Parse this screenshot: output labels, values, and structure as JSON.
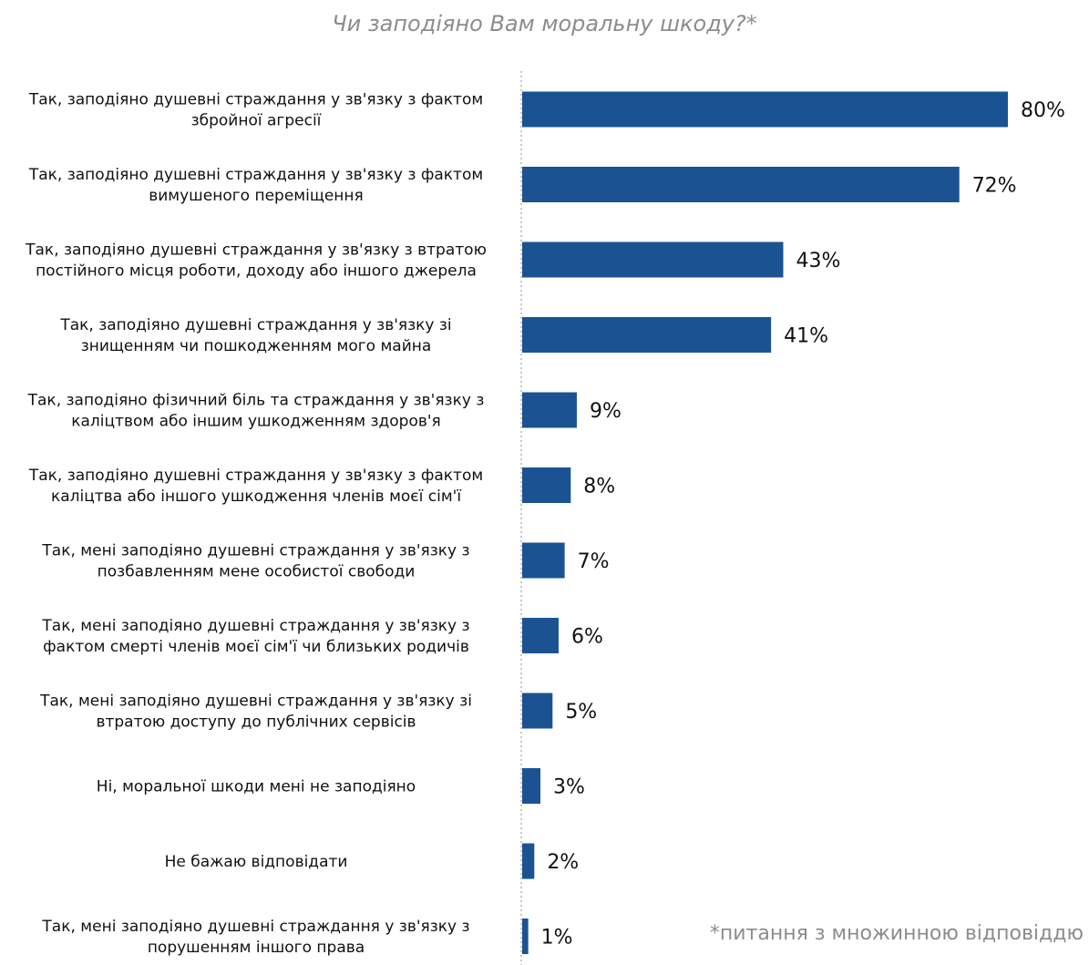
{
  "chart_data": {
    "type": "bar",
    "orientation": "horizontal",
    "title": "Чи заподіяно Вам моральну шкоду?*",
    "categories": [
      [
        "Так, заподіяно душевні страждання у зв'язку з фактом",
        "збройної агресії"
      ],
      [
        "Так, заподіяно душевні страждання у зв'язку з фактом",
        "вимушеного переміщення"
      ],
      [
        "Так, заподіяно душевні страждання у зв'язку з втратою",
        "постійного місця роботи, доходу або іншого джерела"
      ],
      [
        "Так, заподіяно душевні страждання у зв'язку зі",
        "знищенням чи пошкодженням мого майна"
      ],
      [
        "Так, заподіяно фізичний біль та страждання у зв'язку з",
        "каліцтвом або іншим ушкодженням здоров'я"
      ],
      [
        "Так, заподіяно душевні страждання у зв'язку з фактом",
        "каліцтва або іншого ушкодження членів моєї сім'ї"
      ],
      [
        "Так, мені заподіяно душевні страждання у зв'язку з",
        "позбавленням мене особистої свободи"
      ],
      [
        "Так, мені заподіяно душевні страждання у зв'язку з",
        "фактом смерті членів моєї сім'ї чи близьких родичів"
      ],
      [
        "Так, мені заподіяно душевні страждання у зв'язку зі",
        "втратою доступу до публічних сервісів"
      ],
      [
        "Ні, моральної шкоди мені не заподіяно"
      ],
      [
        "Не бажаю відповідати"
      ],
      [
        "Так, мені заподіяно душевні страждання у зв'язку з",
        "порушенням іншого права"
      ]
    ],
    "values": [
      80,
      72,
      43,
      41,
      9,
      8,
      7,
      6,
      5,
      3,
      2,
      1
    ],
    "value_labels": [
      "80%",
      "72%",
      "43%",
      "41%",
      "9%",
      "8%",
      "7%",
      "6%",
      "5%",
      "3%",
      "2%",
      "1%"
    ],
    "unit": "%",
    "xlim": [
      0,
      80
    ],
    "grid": false,
    "legend": "none",
    "bar_color": "#1b5392",
    "axis_line_color": "#c8c8c8",
    "footnote": "*питання з множинною відповіддю"
  }
}
